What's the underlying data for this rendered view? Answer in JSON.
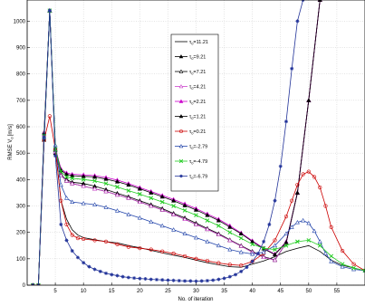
{
  "chart_data": {
    "type": "line",
    "title": "",
    "xlabel": "No. of iteration",
    "ylabel": "RMSE V",
    "ylabel_sub": "o",
    "ylabel_unit": "[m/s]",
    "xlim": [
      0,
      60
    ],
    "ylim": [
      0,
      1080
    ],
    "xticks": [
      5,
      10,
      15,
      20,
      25,
      30,
      35,
      40,
      45,
      50,
      55
    ],
    "yticks": [
      0,
      100,
      200,
      300,
      400,
      500,
      600,
      700,
      800,
      900,
      1000
    ],
    "grid": true,
    "legend_position": "top-center",
    "series": [
      {
        "name": "τ₀=11.21",
        "prefix": "τ",
        "sub": "0",
        "value": "=11.21",
        "color": "#000000",
        "marker": "none",
        "x": [
          1,
          2,
          3,
          4,
          5,
          6,
          7,
          8,
          9,
          10,
          12,
          14,
          16,
          18,
          20,
          22,
          24,
          26,
          28,
          30,
          32,
          34,
          36,
          38,
          40,
          42,
          44,
          46,
          48,
          50,
          52,
          54,
          56,
          58,
          60
        ],
        "y": [
          0,
          0,
          550,
          1040,
          520,
          320,
          250,
          210,
          190,
          180,
          172,
          165,
          160,
          150,
          142,
          132,
          122,
          114,
          105,
          95,
          85,
          77,
          70,
          68,
          80,
          92,
          108,
          128,
          140,
          150,
          128,
          95,
          75,
          65,
          55
        ]
      },
      {
        "name": "τ₀=9.21",
        "prefix": "τ",
        "sub": "0",
        "value": "=9.21",
        "color": "#000000",
        "marker": "triangle-filled",
        "x": [
          1,
          2,
          3,
          4,
          5,
          6,
          7,
          8,
          10,
          12,
          14,
          16,
          18,
          20,
          22,
          24,
          26,
          28,
          30,
          32,
          34,
          36,
          38,
          40,
          42,
          44,
          46,
          48,
          50,
          52,
          54,
          56,
          58,
          60
        ],
        "y": [
          0,
          0,
          550,
          1040,
          500,
          415,
          400,
          390,
          385,
          375,
          362,
          348,
          335,
          320,
          305,
          290,
          272,
          255,
          235,
          215,
          195,
          172,
          150,
          128,
          108,
          96,
          160,
          350,
          700,
          1080,
          1100,
          1100,
          1100,
          1100
        ]
      },
      {
        "name": "τ₀=7.21",
        "prefix": "τ",
        "sub": "0",
        "value": "=7.21",
        "color": "#000000",
        "marker": "triangle-open",
        "x": [
          1,
          2,
          3,
          4,
          5,
          6,
          7,
          8,
          10,
          12,
          14,
          16,
          18,
          20,
          22,
          24,
          26,
          28,
          30,
          32,
          34,
          36,
          38,
          40,
          42,
          44,
          46,
          48,
          50,
          52,
          54,
          56,
          58,
          60
        ],
        "y": [
          0,
          0,
          580,
          1040,
          510,
          420,
          395,
          385,
          375,
          365,
          355,
          342,
          330,
          315,
          300,
          285,
          268,
          250,
          230,
          212,
          192,
          170,
          148,
          125,
          106,
          95,
          160,
          350,
          700,
          1080,
          1100,
          1100,
          1100,
          1100
        ]
      },
      {
        "name": "τ₀=4.21",
        "prefix": "τ",
        "sub": "0",
        "value": "=4.21",
        "color": "#cc44cc",
        "marker": "triangle-open",
        "x": [
          1,
          2,
          3,
          4,
          5,
          6,
          7,
          8,
          10,
          12,
          14,
          16,
          18,
          20,
          22,
          24,
          26,
          28,
          30,
          32,
          34,
          36,
          38,
          40,
          42,
          44,
          46,
          48,
          50,
          52,
          54,
          56,
          58,
          60
        ],
        "y": [
          0,
          0,
          580,
          1040,
          505,
          415,
          395,
          385,
          375,
          365,
          355,
          342,
          330,
          315,
          300,
          285,
          268,
          250,
          230,
          212,
          192,
          170,
          148,
          125,
          106,
          95,
          160,
          350,
          700,
          1080,
          1100,
          1100,
          1100,
          1100
        ]
      },
      {
        "name": "τ₀=2.21",
        "prefix": "τ",
        "sub": "0",
        "value": "=2.21",
        "color": "#cc00cc",
        "marker": "triangle-filled",
        "x": [
          1,
          2,
          3,
          4,
          5,
          6,
          7,
          8,
          10,
          12,
          14,
          16,
          18,
          20,
          22,
          24,
          26,
          28,
          30,
          32,
          34,
          36,
          38,
          40,
          42,
          44,
          46,
          48,
          50,
          52,
          54,
          56,
          58,
          60
        ],
        "y": [
          0,
          0,
          570,
          1040,
          520,
          440,
          425,
          420,
          418,
          415,
          408,
          398,
          385,
          370,
          355,
          340,
          325,
          308,
          290,
          270,
          250,
          225,
          198,
          168,
          140,
          118,
          165,
          350,
          700,
          1080,
          1100,
          1100,
          1100,
          1100
        ]
      },
      {
        "name": "τ₀=1.21",
        "prefix": "τ",
        "sub": "0",
        "value": "=1.21",
        "color": "#000000",
        "marker": "triangle-filled",
        "x": [
          1,
          2,
          3,
          4,
          5,
          6,
          7,
          8,
          10,
          12,
          14,
          16,
          18,
          20,
          22,
          24,
          26,
          28,
          30,
          32,
          34,
          36,
          38,
          40,
          42,
          44,
          46,
          48,
          50,
          52,
          54,
          56,
          58,
          60
        ],
        "y": [
          0,
          0,
          575,
          1040,
          515,
          435,
          420,
          415,
          412,
          410,
          402,
          392,
          380,
          365,
          350,
          335,
          320,
          302,
          285,
          265,
          245,
          220,
          195,
          165,
          138,
          116,
          162,
          350,
          700,
          1080,
          1100,
          1100,
          1100,
          1100
        ]
      },
      {
        "name": "τ₀=0.21",
        "prefix": "τ",
        "sub": "0",
        "value": "=0.21",
        "color": "#cc0000",
        "marker": "circle-open",
        "x": [
          1,
          2,
          3,
          4,
          5,
          6,
          7,
          8,
          9,
          10,
          12,
          14,
          16,
          18,
          20,
          22,
          24,
          26,
          28,
          30,
          32,
          34,
          36,
          38,
          40,
          42,
          44,
          46,
          47,
          48,
          49,
          50,
          51,
          52,
          53,
          54,
          56,
          58,
          60
        ],
        "y": [
          0,
          0,
          550,
          640,
          515,
          320,
          230,
          190,
          178,
          175,
          170,
          165,
          155,
          145,
          140,
          135,
          128,
          120,
          110,
          100,
          92,
          84,
          78,
          75,
          90,
          120,
          170,
          260,
          320,
          380,
          420,
          430,
          410,
          370,
          300,
          220,
          130,
          80,
          55
        ]
      },
      {
        "name": "τ₀=-2.79",
        "prefix": "τ",
        "sub": "0",
        "value": "=-2.79",
        "color": "#2244aa",
        "marker": "triangle-open",
        "x": [
          1,
          2,
          3,
          4,
          5,
          6,
          7,
          8,
          10,
          12,
          14,
          16,
          18,
          20,
          22,
          24,
          26,
          28,
          30,
          32,
          34,
          36,
          38,
          40,
          42,
          44,
          46,
          47,
          48,
          49,
          50,
          51,
          52,
          53,
          54,
          56,
          58,
          60
        ],
        "y": [
          0,
          0,
          560,
          1040,
          530,
          380,
          330,
          315,
          310,
          305,
          295,
          282,
          268,
          255,
          240,
          225,
          210,
          195,
          180,
          165,
          150,
          135,
          125,
          118,
          125,
          150,
          195,
          220,
          238,
          245,
          235,
          205,
          165,
          120,
          90,
          70,
          60,
          55
        ]
      },
      {
        "name": "τ₀=-4.79",
        "prefix": "τ",
        "sub": "0",
        "value": "=-4.79",
        "color": "#22cc22",
        "marker": "x",
        "x": [
          1,
          2,
          3,
          4,
          5,
          6,
          7,
          8,
          10,
          12,
          14,
          16,
          18,
          20,
          22,
          24,
          26,
          28,
          30,
          32,
          34,
          36,
          38,
          40,
          42,
          44,
          46,
          48,
          50,
          52,
          54,
          56,
          58,
          60
        ],
        "y": [
          0,
          0,
          565,
          1040,
          515,
          430,
          410,
          405,
          400,
          395,
          385,
          372,
          358,
          345,
          330,
          315,
          300,
          283,
          265,
          245,
          225,
          200,
          178,
          155,
          140,
          135,
          150,
          165,
          170,
          150,
          110,
          80,
          65,
          55
        ]
      },
      {
        "name": "τ₀=-6.79",
        "prefix": "τ",
        "sub": "0",
        "value": "=-6.79",
        "color": "#223399",
        "marker": "star",
        "x": [
          1,
          2,
          3,
          4,
          5,
          6,
          7,
          8,
          9,
          10,
          11,
          12,
          13,
          14,
          15,
          16,
          17,
          18,
          19,
          20,
          21,
          22,
          23,
          24,
          25,
          26,
          27,
          28,
          29,
          30,
          31,
          32,
          33,
          34,
          35,
          36,
          37,
          38,
          39,
          40,
          41,
          42,
          43,
          44,
          45,
          46,
          47,
          48,
          49,
          50,
          51,
          52,
          53,
          54,
          55,
          56,
          57,
          58,
          59,
          60
        ],
        "y": [
          0,
          0,
          560,
          1040,
          490,
          230,
          170,
          130,
          105,
          85,
          70,
          60,
          52,
          45,
          40,
          36,
          32,
          29,
          27,
          25,
          24,
          22,
          21,
          20,
          19,
          18,
          17,
          16,
          16,
          15,
          16,
          17,
          19,
          22,
          26,
          32,
          40,
          52,
          68,
          90,
          120,
          165,
          230,
          320,
          450,
          620,
          820,
          1000,
          1080,
          1100,
          1100,
          1100,
          1100,
          1100,
          1100,
          1100,
          1100,
          1100,
          1100,
          1100
        ]
      }
    ]
  }
}
